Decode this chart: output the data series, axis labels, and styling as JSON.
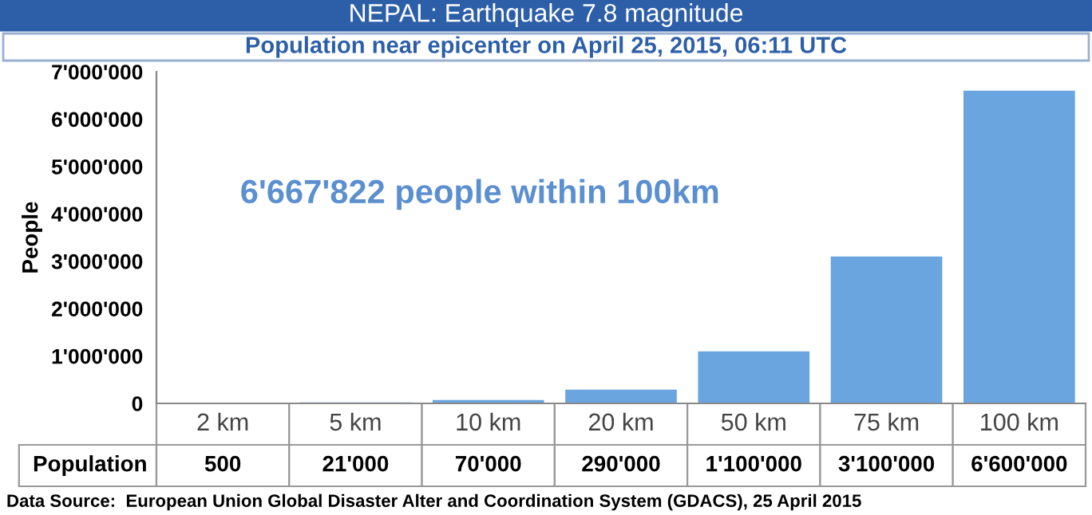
{
  "chart_data": {
    "type": "bar",
    "title": "NEPAL: Earthquake 7.8 magnitude",
    "subtitle": "Population near epicenter on April 25, 2015, 06:11 UTC",
    "ylabel": "People",
    "categories": [
      "2 km",
      "5 km",
      "10 km",
      "20 km",
      "50 km",
      "75 km",
      "100 km"
    ],
    "series": [
      {
        "name": "Population",
        "color": "#6aa5e0",
        "values": [
          500,
          21000,
          70000,
          290000,
          1100000,
          3100000,
          6600000
        ],
        "value_labels": [
          "500",
          "21'000",
          "70'000",
          "290'000",
          "1'100'000",
          "3'100'000",
          "6'600'000"
        ]
      }
    ],
    "ylim": [
      0,
      7000000
    ],
    "yticks": [
      0,
      {
        "value": 1000000,
        "label": "1'000'000"
      },
      {
        "value": 2000000,
        "label": "2'000'000"
      },
      {
        "value": 3000000,
        "label": "3'000'000"
      },
      {
        "value": 4000000,
        "label": "4'000'000"
      },
      {
        "value": 5000000,
        "label": "5'000'000"
      },
      {
        "value": 6000000,
        "label": "6'000'000"
      },
      {
        "value": 7000000,
        "label": "7'000'000"
      }
    ],
    "annotations": [
      "6'667'822 people within 100km",
      "Data Source:  European Union Global Disaster Alter and Coordination System (GDACS), 25 April 2015"
    ],
    "grid": false,
    "legend": false
  }
}
